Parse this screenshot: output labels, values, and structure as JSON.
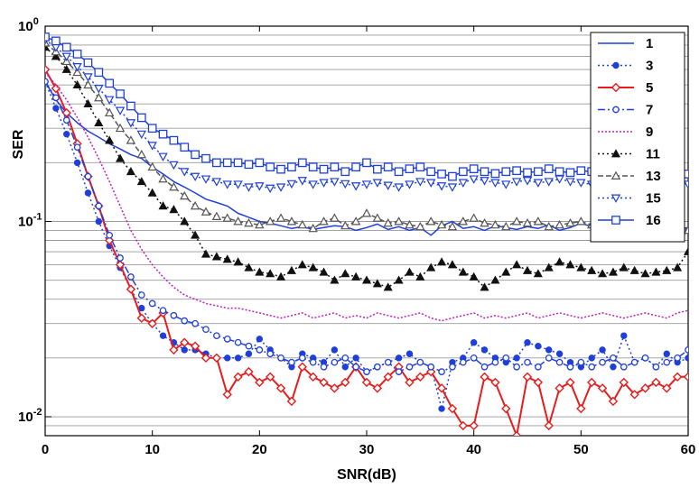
{
  "chart_data": {
    "type": "line",
    "title": "",
    "xlabel": "SNR(dB)",
    "ylabel": "SER",
    "xlim": [
      0,
      60
    ],
    "ylim": [
      0.008,
      1
    ],
    "yscale": "log",
    "grid": "horizontal-minor",
    "legend_position": "top-right",
    "x_ticks": [
      0,
      10,
      20,
      30,
      40,
      50,
      60
    ],
    "y_ticks": [
      {
        "value": 1,
        "base": "10",
        "exp": "0"
      },
      {
        "value": 0.1,
        "base": "10",
        "exp": "-1"
      },
      {
        "value": 0.01,
        "base": "10",
        "exp": "-2"
      }
    ],
    "series": [
      {
        "name": "1",
        "color": "#1f3fd9",
        "dash": "",
        "marker": "none",
        "values": [
          0.52,
          0.42,
          0.36,
          0.32,
          0.29,
          0.27,
          0.25,
          0.235,
          0.22,
          0.21,
          0.19,
          0.175,
          0.16,
          0.15,
          0.14,
          0.13,
          0.125,
          0.12,
          0.11,
          0.105,
          0.1,
          0.098,
          0.095,
          0.092,
          0.094,
          0.091,
          0.093,
          0.095,
          0.094,
          0.09,
          0.093,
          0.097,
          0.091,
          0.094,
          0.09,
          0.093,
          0.085,
          0.095,
          0.1,
          0.092,
          0.094,
          0.09,
          0.095,
          0.093,
          0.091,
          0.094,
          0.092,
          0.096,
          0.09,
          0.093,
          0.098,
          0.094,
          0.092,
          0.095,
          0.093,
          0.092,
          0.09,
          0.094,
          0.093,
          0.091,
          0.093
        ]
      },
      {
        "name": "3",
        "color": "#1f3fd9",
        "dash": "2,3",
        "marker": "dot",
        "values": [
          0.52,
          0.38,
          0.28,
          0.2,
          0.14,
          0.1,
          0.075,
          0.058,
          0.045,
          0.036,
          0.03,
          0.026,
          0.024,
          0.022,
          0.022,
          0.021,
          0.02,
          0.02,
          0.02,
          0.021,
          0.025,
          0.022,
          0.02,
          0.018,
          0.021,
          0.02,
          0.019,
          0.022,
          0.018,
          0.02,
          0.017,
          0.018,
          0.019,
          0.02,
          0.021,
          0.019,
          0.018,
          0.011,
          0.019,
          0.02,
          0.024,
          0.022,
          0.02,
          0.019,
          0.02,
          0.024,
          0.023,
          0.022,
          0.021,
          0.019,
          0.018,
          0.02,
          0.022,
          0.018,
          0.026,
          0.019,
          0.02,
          0.018,
          0.021,
          0.019,
          0.02
        ]
      },
      {
        "name": "5",
        "color": "#e81c1c",
        "dash": "",
        "marker": "diamond",
        "values": [
          0.6,
          0.48,
          0.36,
          0.25,
          0.17,
          0.12,
          0.08,
          0.06,
          0.045,
          0.032,
          0.03,
          0.034,
          0.022,
          0.024,
          0.023,
          0.02,
          0.02,
          0.013,
          0.016,
          0.017,
          0.015,
          0.016,
          0.014,
          0.012,
          0.018,
          0.016,
          0.015,
          0.014,
          0.015,
          0.018,
          0.015,
          0.014,
          0.016,
          0.018,
          0.015,
          0.016,
          0.017,
          0.014,
          0.011,
          0.009,
          0.009,
          0.016,
          0.015,
          0.011,
          0.008,
          0.016,
          0.015,
          0.009,
          0.014,
          0.015,
          0.011,
          0.015,
          0.014,
          0.012,
          0.015,
          0.013,
          0.014,
          0.015,
          0.014,
          0.016,
          0.016
        ]
      },
      {
        "name": "7",
        "color": "#1f3fd9",
        "dash": "8,3,2,3",
        "marker": "circle",
        "values": [
          0.52,
          0.43,
          0.33,
          0.24,
          0.17,
          0.12,
          0.085,
          0.065,
          0.052,
          0.042,
          0.038,
          0.035,
          0.033,
          0.031,
          0.03,
          0.028,
          0.026,
          0.025,
          0.024,
          0.023,
          0.022,
          0.021,
          0.02,
          0.019,
          0.02,
          0.019,
          0.018,
          0.019,
          0.02,
          0.018,
          0.017,
          0.018,
          0.019,
          0.017,
          0.018,
          0.019,
          0.018,
          0.017,
          0.018,
          0.019,
          0.02,
          0.018,
          0.019,
          0.02,
          0.018,
          0.019,
          0.018,
          0.02,
          0.019,
          0.018,
          0.019,
          0.018,
          0.019,
          0.02,
          0.018,
          0.019,
          0.02,
          0.018,
          0.019,
          0.02,
          0.022
        ]
      },
      {
        "name": "9",
        "color": "#c020c0",
        "dash": "2,2",
        "marker": "none",
        "values": [
          0.58,
          0.5,
          0.42,
          0.34,
          0.27,
          0.21,
          0.16,
          0.12,
          0.09,
          0.072,
          0.06,
          0.052,
          0.046,
          0.042,
          0.04,
          0.038,
          0.037,
          0.036,
          0.036,
          0.035,
          0.034,
          0.033,
          0.032,
          0.033,
          0.034,
          0.032,
          0.033,
          0.034,
          0.032,
          0.033,
          0.032,
          0.034,
          0.033,
          0.032,
          0.033,
          0.034,
          0.032,
          0.031,
          0.032,
          0.033,
          0.034,
          0.032,
          0.033,
          0.032,
          0.033,
          0.034,
          0.032,
          0.033,
          0.034,
          0.033,
          0.032,
          0.033,
          0.034,
          0.033,
          0.032,
          0.033,
          0.034,
          0.033,
          0.032,
          0.034,
          0.035
        ]
      },
      {
        "name": "11",
        "color": "#111111",
        "dash": "2,3",
        "marker": "triangle",
        "values": [
          0.78,
          0.7,
          0.6,
          0.5,
          0.4,
          0.32,
          0.26,
          0.21,
          0.18,
          0.16,
          0.14,
          0.12,
          0.115,
          0.1,
          0.085,
          0.068,
          0.066,
          0.064,
          0.062,
          0.058,
          0.055,
          0.054,
          0.052,
          0.056,
          0.06,
          0.058,
          0.055,
          0.05,
          0.054,
          0.052,
          0.05,
          0.048,
          0.046,
          0.05,
          0.055,
          0.052,
          0.058,
          0.062,
          0.06,
          0.055,
          0.052,
          0.046,
          0.05,
          0.055,
          0.06,
          0.056,
          0.054,
          0.058,
          0.062,
          0.06,
          0.058,
          0.056,
          0.054,
          0.055,
          0.058,
          0.056,
          0.054,
          0.055,
          0.056,
          0.058,
          0.07
        ]
      },
      {
        "name": "13",
        "color": "#555555",
        "dash": "6,3",
        "marker": "triangle-open",
        "values": [
          0.82,
          0.74,
          0.66,
          0.58,
          0.5,
          0.43,
          0.36,
          0.3,
          0.26,
          0.22,
          0.19,
          0.165,
          0.15,
          0.135,
          0.12,
          0.112,
          0.106,
          0.104,
          0.1,
          0.098,
          0.096,
          0.1,
          0.104,
          0.1,
          0.096,
          0.092,
          0.1,
          0.104,
          0.095,
          0.1,
          0.11,
          0.104,
          0.098,
          0.1,
          0.096,
          0.094,
          0.1,
          0.096,
          0.094,
          0.1,
          0.104,
          0.098,
          0.096,
          0.094,
          0.1,
          0.098,
          0.1,
          0.094,
          0.096,
          0.098,
          0.1,
          0.096,
          0.094,
          0.096,
          0.1,
          0.098,
          0.096,
          0.098,
          0.094,
          0.096,
          0.09
        ]
      },
      {
        "name": "15",
        "color": "#1f3fd9",
        "dash": "2,3",
        "marker": "triangle-down-open",
        "values": [
          0.85,
          0.78,
          0.7,
          0.62,
          0.55,
          0.48,
          0.42,
          0.37,
          0.32,
          0.28,
          0.245,
          0.215,
          0.195,
          0.18,
          0.17,
          0.165,
          0.16,
          0.155,
          0.155,
          0.15,
          0.152,
          0.148,
          0.15,
          0.156,
          0.162,
          0.155,
          0.158,
          0.16,
          0.156,
          0.152,
          0.155,
          0.158,
          0.153,
          0.15,
          0.155,
          0.16,
          0.158,
          0.152,
          0.15,
          0.158,
          0.165,
          0.162,
          0.158,
          0.155,
          0.16,
          0.162,
          0.158,
          0.16,
          0.165,
          0.16,
          0.158,
          0.155,
          0.16,
          0.162,
          0.158,
          0.156,
          0.16,
          0.162,
          0.158,
          0.16,
          0.155
        ]
      },
      {
        "name": "16",
        "color": "#1f3fd9",
        "dash": "",
        "marker": "square-open",
        "values": [
          0.88,
          0.84,
          0.78,
          0.72,
          0.65,
          0.58,
          0.51,
          0.45,
          0.39,
          0.34,
          0.3,
          0.28,
          0.26,
          0.24,
          0.22,
          0.21,
          0.2,
          0.2,
          0.2,
          0.196,
          0.2,
          0.19,
          0.185,
          0.19,
          0.2,
          0.19,
          0.185,
          0.19,
          0.18,
          0.19,
          0.2,
          0.185,
          0.19,
          0.18,
          0.186,
          0.19,
          0.18,
          0.175,
          0.17,
          0.18,
          0.186,
          0.18,
          0.176,
          0.18,
          0.182,
          0.178,
          0.18,
          0.186,
          0.18,
          0.178,
          0.182,
          0.18,
          0.178,
          0.182,
          0.18,
          0.178,
          0.186,
          0.18,
          0.178,
          0.18,
          0.175
        ]
      }
    ]
  }
}
